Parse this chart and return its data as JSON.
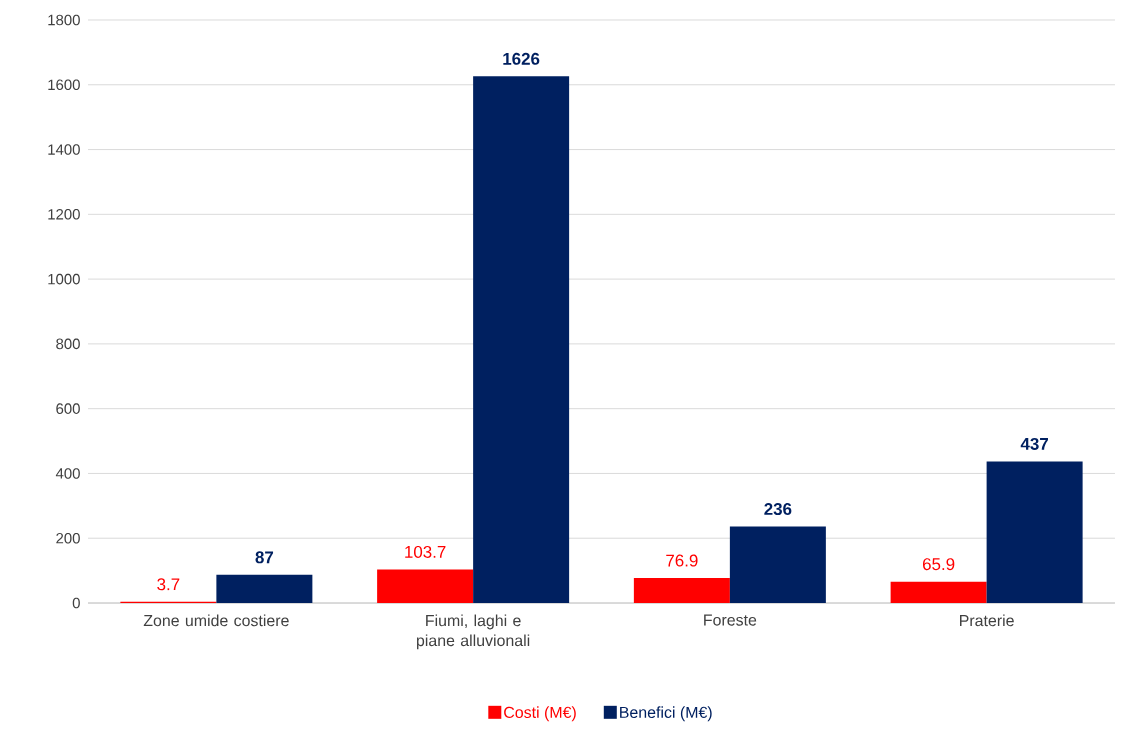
{
  "chart_data": {
    "type": "bar",
    "categories": [
      "Zone umide costiere",
      "Fiumi, laghi e piane alluvionali",
      "Foreste",
      "Praterie"
    ],
    "series": [
      {
        "name": "Costi (M€)",
        "color": "#ff0000",
        "values": [
          3.7,
          103.7,
          76.9,
          65.9
        ]
      },
      {
        "name": "Benefici (M€)",
        "color": "#002060",
        "values": [
          87,
          1626,
          236,
          437
        ]
      }
    ],
    "ylim": [
      0,
      1800
    ],
    "yticks": [
      0,
      200,
      400,
      600,
      800,
      1000,
      1200,
      1400,
      1600,
      1800
    ],
    "grid": "y",
    "legend": "bottom",
    "data_labels": true
  }
}
